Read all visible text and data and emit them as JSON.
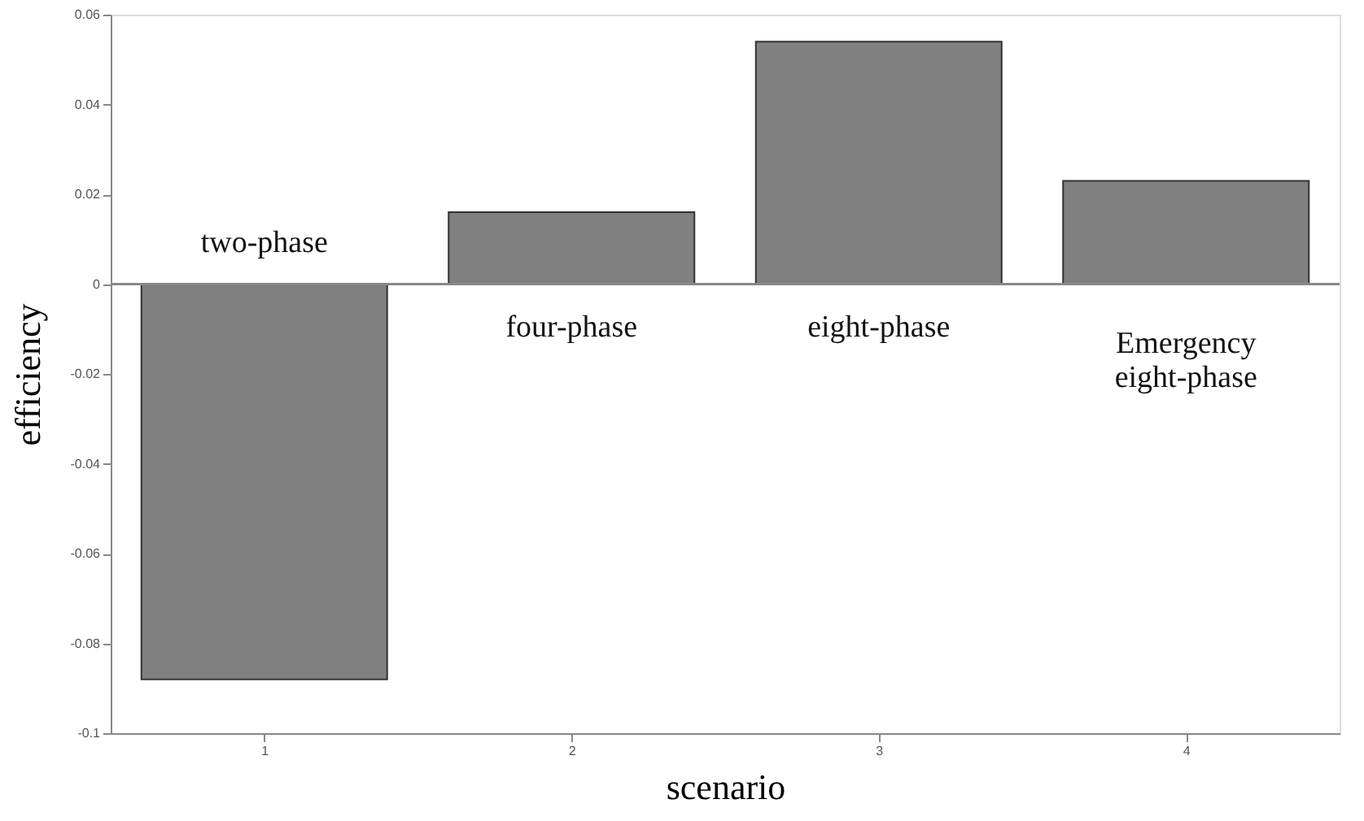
{
  "chart_data": {
    "type": "bar",
    "xlabel": "scenario",
    "ylabel": "efficiency",
    "x": [
      1,
      2,
      3,
      4
    ],
    "values": [
      -0.088,
      0.016,
      0.054,
      0.023
    ],
    "color": "#808080",
    "xlim": [
      0.5,
      4.5
    ],
    "xticks": [
      1,
      2,
      3,
      4
    ],
    "ylim": [
      -0.1,
      0.06
    ],
    "yticks": [
      -0.1,
      -0.08,
      -0.06,
      -0.04,
      -0.02,
      0,
      0.02,
      0.04,
      0.06
    ],
    "grid": false,
    "ref_lines": [
      {
        "axis": "y",
        "value": 0,
        "color": "#888888"
      }
    ],
    "annotations": [
      "two-phase",
      "four-phase",
      "eight-phase",
      "Emergency\neight-phase"
    ]
  }
}
